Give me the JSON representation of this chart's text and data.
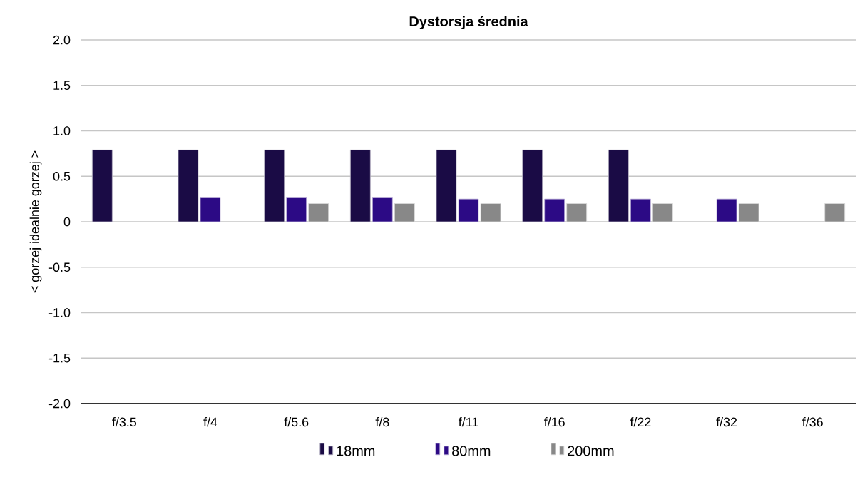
{
  "chart_data": {
    "type": "bar",
    "title": "Dystorsja średnia",
    "ylabel": "< gorzej  idealnie  gorzej >",
    "categories": [
      "f/3.5",
      "f/4",
      "f/5.6",
      "f/8",
      "f/11",
      "f/16",
      "f/22",
      "f/32",
      "f/36"
    ],
    "series": [
      {
        "name": "18mm",
        "color": "#1a0b45",
        "values": [
          0.79,
          0.79,
          0.79,
          0.79,
          0.79,
          0.79,
          0.79,
          null,
          null
        ]
      },
      {
        "name": "80mm",
        "color": "#2c0a85",
        "values": [
          null,
          0.27,
          0.27,
          0.27,
          0.25,
          0.25,
          0.25,
          0.25,
          null
        ]
      },
      {
        "name": "200mm",
        "color": "#888888",
        "values": [
          null,
          null,
          0.2,
          0.2,
          0.2,
          0.2,
          0.2,
          0.2,
          0.2
        ]
      }
    ],
    "ylim": [
      -2.0,
      2.0
    ],
    "yticks": [
      {
        "value": -2,
        "label": "-2.0"
      },
      {
        "value": -1.5,
        "label": "-1.5"
      },
      {
        "value": -1,
        "label": "-1.0"
      },
      {
        "value": -0.5,
        "label": "-0.5"
      },
      0,
      {
        "value": 0.5,
        "label": "0.5"
      },
      {
        "value": 1,
        "label": "1.0"
      },
      {
        "value": 1.5,
        "label": "1.5"
      },
      {
        "value": 2,
        "label": "2.0"
      }
    ],
    "grid": "y",
    "legend": "bottom"
  }
}
